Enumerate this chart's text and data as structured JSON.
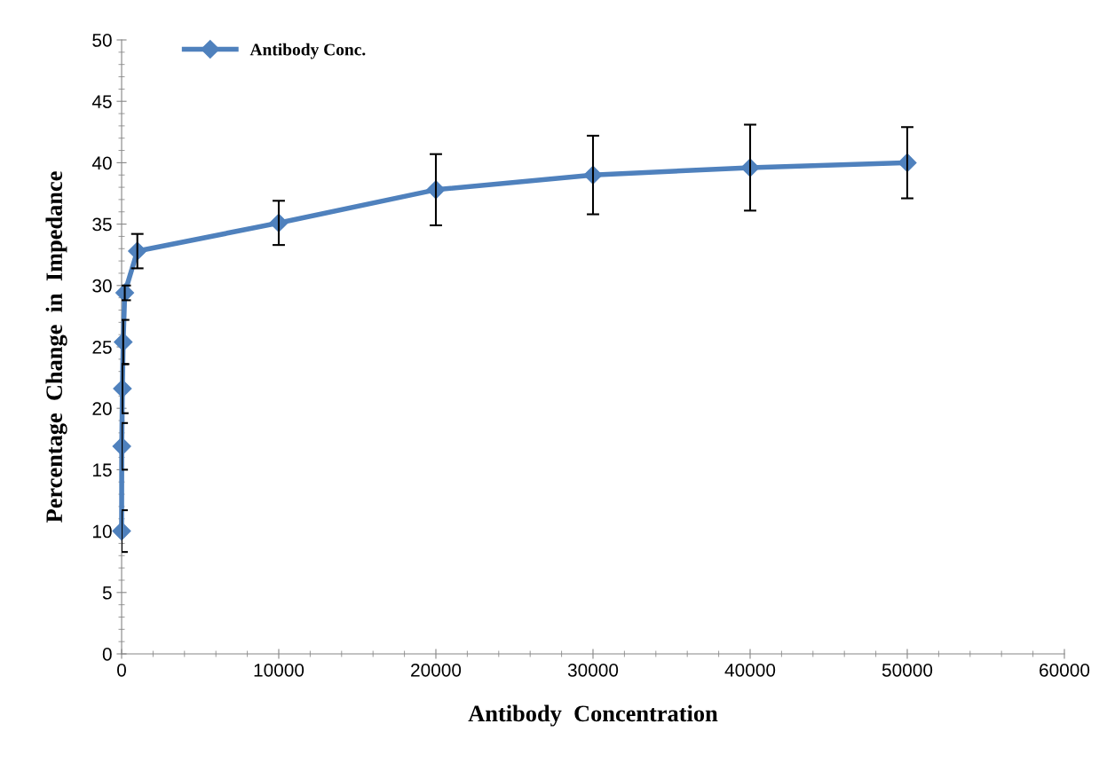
{
  "chart_data": {
    "type": "line",
    "xlabel": "Antibody  Concentration",
    "ylabel": "Percentage  Change  in  Impedance",
    "x": [
      0,
      10,
      50,
      100,
      200,
      1000,
      10000,
      20000,
      30000,
      40000,
      50000
    ],
    "series": [
      {
        "name": "Antibody Conc.",
        "color": "#4f81bd",
        "values": [
          10,
          16.9,
          21.6,
          25.4,
          29.4,
          32.8,
          35.1,
          37.8,
          39.0,
          39.6,
          40.0
        ],
        "errors": [
          1.7,
          1.9,
          2.0,
          1.8,
          0.6,
          1.4,
          1.8,
          2.9,
          3.2,
          3.5,
          2.9
        ]
      }
    ],
    "xlim": [
      0,
      60000
    ],
    "xticks": [
      0,
      10000,
      20000,
      30000,
      40000,
      50000,
      60000
    ],
    "ylim": [
      0,
      50
    ],
    "yticks": [
      0,
      5,
      10,
      15,
      20,
      25,
      30,
      35,
      40,
      45,
      50
    ],
    "marker": "diamond",
    "line_style": "solid",
    "legend": "top left",
    "grid": false
  }
}
